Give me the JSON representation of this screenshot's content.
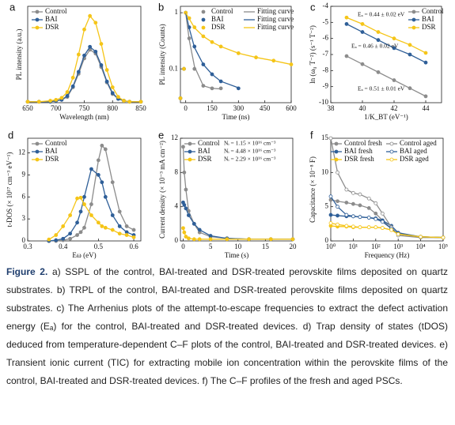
{
  "chart_data": [
    {
      "type": "line",
      "panel": "a",
      "xlabel": "Wavelength (nm)",
      "ylabel": "PL intensity (a.u.)",
      "xlim": [
        650,
        850
      ],
      "xticks": [
        650,
        700,
        750,
        800,
        850
      ],
      "ylim": [
        0,
        1
      ],
      "legend": "upper left",
      "x": [
        650,
        670,
        690,
        700,
        710,
        720,
        730,
        740,
        750,
        760,
        770,
        780,
        790,
        800,
        810,
        820,
        830,
        850
      ],
      "series": [
        {
          "name": "Control",
          "color": "#8c8c8c",
          "marker": "filled",
          "line": true,
          "values": [
            0.01,
            0.01,
            0.01,
            0.02,
            0.03,
            0.06,
            0.16,
            0.3,
            0.46,
            0.55,
            0.51,
            0.37,
            0.21,
            0.09,
            0.04,
            0.02,
            0.01,
            0.01
          ]
        },
        {
          "name": "BAI",
          "color": "#2f5f98",
          "marker": "filled",
          "line": true,
          "values": [
            0.01,
            0.01,
            0.01,
            0.02,
            0.03,
            0.07,
            0.17,
            0.32,
            0.49,
            0.58,
            0.53,
            0.39,
            0.22,
            0.1,
            0.04,
            0.02,
            0.01,
            0.01
          ]
        },
        {
          "name": "DSR",
          "color": "#f5c518",
          "marker": "filled",
          "line": true,
          "values": [
            0.01,
            0.01,
            0.02,
            0.03,
            0.05,
            0.11,
            0.26,
            0.5,
            0.76,
            0.9,
            0.83,
            0.61,
            0.34,
            0.16,
            0.06,
            0.02,
            0.01,
            0.01
          ]
        }
      ]
    },
    {
      "type": "line",
      "panel": "b",
      "xlabel": "Time (ns)",
      "ylabel": "PL intensity (Counts)",
      "xlim": [
        -30,
        600
      ],
      "xticks": [
        0,
        150,
        300,
        450,
        600
      ],
      "ylim": [
        0.025,
        1.3
      ],
      "ylog": true,
      "yticks": [
        0.1,
        1
      ],
      "legend": "upper right",
      "legend_columns": 2,
      "x": [
        -30,
        -10,
        0,
        20,
        50,
        100,
        150,
        200,
        300,
        400,
        500,
        600
      ],
      "series": [
        {
          "name": "Control",
          "color": "#8c8c8c",
          "marker": "filled",
          "line": false,
          "values": [
            0.03,
            0.1,
            1,
            0.35,
            0.1,
            0.05,
            0.045,
            0.045,
            null,
            null,
            null,
            null
          ]
        },
        {
          "name": "BAI",
          "color": "#2f5f98",
          "marker": "filled",
          "line": false,
          "values": [
            0.03,
            0.1,
            1,
            0.55,
            0.25,
            0.12,
            0.08,
            0.06,
            0.045,
            null,
            null,
            null
          ]
        },
        {
          "name": "DSR",
          "color": "#f5c518",
          "marker": "filled",
          "line": false,
          "values": [
            0.03,
            0.1,
            1,
            0.8,
            0.55,
            0.38,
            0.3,
            0.25,
            0.19,
            0.16,
            0.14,
            0.12
          ]
        },
        {
          "name": "Fitting curve",
          "color": "#8c8c8c",
          "marker": "none",
          "line": true,
          "values": [
            null,
            null,
            1,
            0.33,
            0.11,
            0.05,
            0.045,
            0.044,
            null,
            null,
            null,
            null
          ]
        },
        {
          "name": "Fitting curve",
          "color": "#2f5f98",
          "marker": "none",
          "line": true,
          "values": [
            null,
            null,
            1,
            0.53,
            0.24,
            0.12,
            0.08,
            0.06,
            0.046,
            null,
            null,
            null
          ]
        },
        {
          "name": "Fitting curve",
          "color": "#f5c518",
          "marker": "none",
          "line": true,
          "values": [
            null,
            null,
            1,
            0.78,
            0.54,
            0.38,
            0.3,
            0.25,
            0.19,
            0.16,
            0.14,
            0.12
          ]
        }
      ]
    },
    {
      "type": "scatter",
      "panel": "c",
      "xlabel": "1/K_BT (eV⁻¹)",
      "ylabel": "ln (ω₀ T⁻²) (s⁻¹ T⁻²)",
      "xlim": [
        38,
        45
      ],
      "xticks": [
        38,
        40,
        42,
        44
      ],
      "ylim": [
        -10,
        -4
      ],
      "yticks": [
        -4,
        -5,
        -6,
        -7,
        -8,
        -9,
        -10
      ],
      "legend": "upper right",
      "x": [
        39,
        40,
        41,
        42,
        43,
        44
      ],
      "annotations": [
        "Eₐ = 0.44 ± 0.02 eV",
        "Eₐ = 0.46 ± 0.02 eV",
        "Eₐ = 0.51 ± 0.01 eV"
      ],
      "series": [
        {
          "name": "Control",
          "color": "#8c8c8c",
          "marker": "filled",
          "line": true,
          "values": [
            -7.1,
            -7.6,
            -8.1,
            -8.6,
            -9.1,
            -9.6
          ]
        },
        {
          "name": "BAI",
          "color": "#2f5f98",
          "marker": "filled",
          "line": true,
          "values": [
            -5.1,
            -5.6,
            -6.1,
            -6.6,
            -7.0,
            -7.5
          ]
        },
        {
          "name": "DSR",
          "color": "#f5c518",
          "marker": "filled",
          "line": true,
          "values": [
            -4.7,
            -5.1,
            -5.6,
            -6.0,
            -6.4,
            -6.9
          ]
        }
      ]
    },
    {
      "type": "line",
      "panel": "d",
      "xlabel": "Eω (eV)",
      "ylabel": "t-DOS (× 10¹⁷ cm⁻³ eV⁻¹)",
      "xlim": [
        0.3,
        0.62
      ],
      "xticks": [
        0.3,
        0.4,
        0.5,
        0.6
      ],
      "ylim": [
        0,
        14
      ],
      "yticks": [
        0,
        3,
        6,
        9,
        12
      ],
      "legend": "upper left",
      "x": [
        0.36,
        0.38,
        0.4,
        0.42,
        0.44,
        0.45,
        0.46,
        0.48,
        0.5,
        0.51,
        0.52,
        0.54,
        0.56,
        0.58,
        0.6
      ],
      "series": [
        {
          "name": "Control",
          "color": "#8c8c8c",
          "marker": "filled",
          "line": true,
          "values": [
            0,
            0,
            0.1,
            0.3,
            0.8,
            1.2,
            1.8,
            5,
            11,
            13,
            12.5,
            8,
            4,
            2,
            1.5
          ]
        },
        {
          "name": "BAI",
          "color": "#2f5f98",
          "marker": "filled",
          "line": true,
          "values": [
            0,
            0.1,
            0.3,
            1,
            2.5,
            4,
            6,
            9.8,
            9,
            8,
            6,
            3.5,
            2,
            1.2,
            0.8
          ]
        },
        {
          "name": "DSR",
          "color": "#f5c518",
          "marker": "filled",
          "line": true,
          "values": [
            0.2,
            0.8,
            2,
            3.5,
            5.8,
            5.9,
            5,
            3.5,
            2.5,
            2,
            1.8,
            1.5,
            1,
            0.8,
            0.5
          ]
        }
      ]
    },
    {
      "type": "line",
      "panel": "e",
      "xlabel": "Time (s)",
      "ylabel": "Current density (× 10⁻³ mA cm⁻²)",
      "xlim": [
        -0.5,
        20
      ],
      "xticks": [
        0,
        5,
        10,
        15,
        20
      ],
      "ylim": [
        0,
        12
      ],
      "yticks": [
        0,
        4,
        8,
        12
      ],
      "legend": "upper left",
      "annotations": [
        "Nᵢ = 1.15 × 10¹⁶ cm⁻³",
        "Nᵢ = 4.48 × 10¹⁶ cm⁻³",
        "Nᵢ = 2.29 × 10¹⁶ cm⁻³"
      ],
      "x": [
        0,
        0.2,
        0.5,
        1,
        2,
        3,
        5,
        8,
        12,
        16,
        20
      ],
      "series": [
        {
          "name": "Control",
          "color": "#8c8c8c",
          "marker": "filled",
          "line": true,
          "values": [
            11,
            8,
            6,
            3.5,
            2,
            1,
            0.5,
            0.3,
            0.2,
            0.2,
            0.2
          ]
        },
        {
          "name": "BAI",
          "color": "#2f5f98",
          "marker": "filled",
          "line": true,
          "values": [
            4.5,
            4.2,
            3.8,
            3,
            2,
            1.3,
            0.6,
            0.3,
            0.2,
            0.2,
            0.2
          ]
        },
        {
          "name": "DSR",
          "color": "#f5c518",
          "marker": "filled",
          "line": true,
          "values": [
            1.5,
            1,
            0.5,
            0.3,
            0.2,
            0.2,
            0.2,
            0.2,
            0.2,
            0.2,
            0.2
          ]
        }
      ]
    },
    {
      "type": "line",
      "panel": "f",
      "xlabel": "Frequency (Hz)",
      "ylabel": "Capacitance (× 10⁻⁸ F)",
      "xlim": [
        1,
        100000
      ],
      "xlog": true,
      "xticks": [
        {
          "value": 1,
          "label": "10⁰"
        },
        {
          "value": 10,
          "label": "10¹"
        },
        {
          "value": 100,
          "label": "10²"
        },
        {
          "value": 1000,
          "label": "10³"
        },
        {
          "value": 10000,
          "label": "10⁴"
        },
        {
          "value": 100000,
          "label": "10⁵"
        }
      ],
      "ylim": [
        0,
        15
      ],
      "yticks": [
        0,
        5,
        10,
        15
      ],
      "legend": "upper right",
      "legend_columns": 2,
      "x": [
        1,
        2,
        5,
        10,
        20,
        50,
        100,
        200,
        500,
        1000,
        10000,
        100000
      ],
      "series": [
        {
          "name": "Control fresh",
          "color": "#8c8c8c",
          "marker": "filled",
          "line": true,
          "values": [
            6,
            5.8,
            5.6,
            5.4,
            5.2,
            4.8,
            4,
            3,
            1.8,
            1,
            0.6,
            0.5
          ]
        },
        {
          "name": "BAI fresh",
          "color": "#2f5f98",
          "marker": "filled",
          "line": true,
          "values": [
            3.8,
            3.7,
            3.6,
            3.6,
            3.5,
            3.4,
            3.3,
            3,
            2.2,
            1.2,
            0.6,
            0.5
          ]
        },
        {
          "name": "DSR fresh",
          "color": "#f5c518",
          "marker": "filled",
          "line": true,
          "values": [
            2.2,
            2.1,
            2.1,
            2,
            2,
            2,
            2,
            1.9,
            1.6,
            1,
            0.6,
            0.5
          ]
        },
        {
          "name": "Control aged",
          "color": "#8c8c8c",
          "marker": "open",
          "line": true,
          "values": [
            15,
            10,
            7.5,
            7,
            6.8,
            6.2,
            5.5,
            4,
            2,
            0.8,
            0.5,
            0.5
          ]
        },
        {
          "name": "BAI aged",
          "color": "#2f5f98",
          "marker": "open",
          "line": true,
          "values": [
            6.5,
            5,
            3.8,
            3.6,
            3.5,
            3.4,
            3.2,
            2.8,
            1.8,
            1,
            0.6,
            0.5
          ]
        },
        {
          "name": "DSR aged",
          "color": "#f5c518",
          "marker": "open",
          "line": true,
          "values": [
            2.6,
            2.4,
            2.2,
            2.1,
            2,
            2,
            2,
            1.9,
            1.6,
            1,
            0.6,
            0.5
          ]
        }
      ]
    }
  ],
  "caption": {
    "label": "Figure 2.",
    "text": "a) SSPL of the control, BAI-treated and DSR-treated perovskite films deposited on quartz substrates. b) TRPL of the control, BAI-treated and DSR-treated perovskite films deposited on quartz substrates. c) The Arrhenius plots of the attempt-to-escape frequencies to extract the defect activation energy (Eₐ) for the control, BAI-treated and DSR-treated devices. d) Trap density of states (tDOS) deduced from temperature-dependent C–F plots of the control, BAI-treated and DSR-treated devices. e) Transient ionic current (TIC) for extracting mobile ion concentration within the perovskite films of the control, BAI-treated and DSR-treated devices. f) The C–F profiles of the fresh and aged PSCs."
  }
}
